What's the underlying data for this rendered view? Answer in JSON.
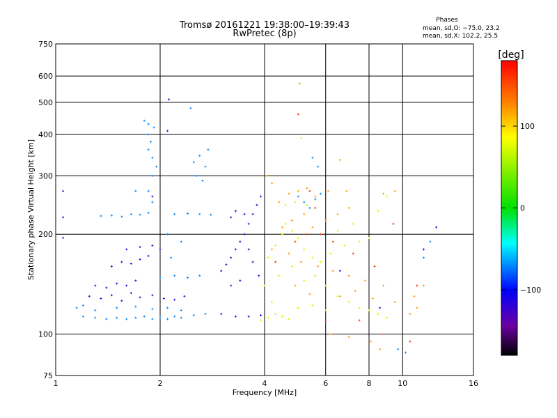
{
  "chart_data": {
    "type": "scatter",
    "title": "Tromsø 20161221 19:38:00–19:39:43",
    "subtitle": "RwPretec (8p)",
    "xlabel": "Frequency [MHz]",
    "ylabel": "Stationary phase Virtual Height [km]",
    "x_scale": "log",
    "y_scale": "log",
    "xlim": [
      1,
      16
    ],
    "ylim": [
      75,
      750
    ],
    "x_ticks": [
      1,
      2,
      4,
      6,
      8,
      10,
      16
    ],
    "y_ticks": [
      75,
      100,
      200,
      300,
      400,
      500,
      600,
      750
    ],
    "grid": true,
    "legend": {
      "title": "Phases",
      "lines": [
        "mean, sd,O: −75.0, 23.2",
        "mean, sd,X: 102.2, 25.5"
      ]
    },
    "colorbar": {
      "label": "[deg]",
      "range": [
        -180,
        180
      ],
      "ticks": [
        100,
        0,
        -100
      ],
      "tick_labels": [
        "100",
        "0",
        "−100"
      ],
      "colors": [
        "#ff0000",
        "#ff8000",
        "#ffff00",
        "#00e000",
        "#00ffff",
        "#0000ff",
        "#6a00a0",
        "#000000"
      ]
    },
    "series": [
      {
        "phase": -120,
        "points": [
          [
            1.25,
            130
          ],
          [
            1.35,
            128
          ],
          [
            1.45,
            131
          ],
          [
            1.55,
            126
          ],
          [
            1.65,
            133
          ],
          [
            1.75,
            129
          ],
          [
            1.9,
            131
          ],
          [
            2.05,
            128
          ],
          [
            2.2,
            127
          ],
          [
            2.35,
            130
          ],
          [
            1.3,
            140
          ],
          [
            1.4,
            138
          ],
          [
            1.5,
            142
          ],
          [
            1.6,
            140
          ],
          [
            1.7,
            145
          ],
          [
            1.45,
            160
          ],
          [
            1.55,
            165
          ],
          [
            1.65,
            163
          ],
          [
            1.75,
            168
          ],
          [
            1.85,
            172
          ],
          [
            1.6,
            180
          ],
          [
            1.75,
            183
          ],
          [
            1.9,
            185
          ],
          [
            2.0,
            180
          ],
          [
            3.0,
            155
          ],
          [
            3.1,
            162
          ],
          [
            3.2,
            170
          ],
          [
            3.3,
            180
          ],
          [
            3.4,
            190
          ],
          [
            3.5,
            200
          ],
          [
            3.6,
            215
          ],
          [
            3.7,
            230
          ],
          [
            3.8,
            245
          ],
          [
            3.9,
            260
          ],
          [
            3.5,
            230
          ],
          [
            3.3,
            235
          ],
          [
            3.2,
            225
          ],
          [
            3.6,
            180
          ],
          [
            3.7,
            165
          ],
          [
            3.85,
            150
          ],
          [
            3.0,
            115
          ],
          [
            3.3,
            113
          ],
          [
            3.6,
            113
          ],
          [
            3.9,
            114
          ],
          [
            3.2,
            140
          ],
          [
            3.4,
            145
          ],
          [
            1.05,
            195
          ],
          [
            1.05,
            225
          ],
          [
            1.05,
            270
          ],
          [
            1.9,
            260
          ],
          [
            2.1,
            410
          ],
          [
            2.12,
            510
          ],
          [
            6.6,
            155
          ],
          [
            8.6,
            120
          ],
          [
            11.5,
            180
          ],
          [
            12.5,
            210
          ]
        ]
      },
      {
        "phase": -70,
        "points": [
          [
            1.15,
            120
          ],
          [
            1.2,
            113
          ],
          [
            1.3,
            112
          ],
          [
            1.4,
            111
          ],
          [
            1.5,
            112
          ],
          [
            1.6,
            111
          ],
          [
            1.7,
            112
          ],
          [
            1.8,
            113
          ],
          [
            1.9,
            111
          ],
          [
            2.0,
            112
          ],
          [
            2.1,
            111
          ],
          [
            2.2,
            113
          ],
          [
            2.3,
            112
          ],
          [
            2.5,
            114
          ],
          [
            2.7,
            115
          ],
          [
            1.2,
            122
          ],
          [
            1.3,
            118
          ],
          [
            1.5,
            120
          ],
          [
            1.7,
            121
          ],
          [
            1.9,
            119
          ],
          [
            2.1,
            120
          ],
          [
            2.3,
            118
          ],
          [
            1.85,
            400
          ],
          [
            1.85,
            430
          ],
          [
            1.85,
            360
          ],
          [
            1.9,
            340
          ],
          [
            1.8,
            440
          ],
          [
            1.9,
            300
          ],
          [
            1.88,
            380
          ],
          [
            1.92,
            420
          ],
          [
            1.95,
            320
          ],
          [
            1.85,
            270
          ],
          [
            1.9,
            250
          ],
          [
            1.45,
            228
          ],
          [
            1.55,
            226
          ],
          [
            1.65,
            230
          ],
          [
            1.75,
            229
          ],
          [
            1.85,
            232
          ],
          [
            1.35,
            227
          ],
          [
            2.2,
            230
          ],
          [
            2.4,
            231
          ],
          [
            2.6,
            230
          ],
          [
            2.8,
            229
          ],
          [
            2.2,
            150
          ],
          [
            2.4,
            148
          ],
          [
            2.6,
            150
          ],
          [
            2.0,
            148
          ],
          [
            2.3,
            190
          ],
          [
            2.5,
            330
          ],
          [
            2.55,
            300
          ],
          [
            2.6,
            345
          ],
          [
            2.65,
            290
          ],
          [
            2.7,
            320
          ],
          [
            2.75,
            360
          ],
          [
            2.45,
            480
          ],
          [
            1.7,
            270
          ],
          [
            2.1,
            200
          ],
          [
            2.15,
            170
          ],
          [
            5.0,
            260
          ],
          [
            5.2,
            250
          ],
          [
            5.4,
            240
          ],
          [
            5.6,
            255
          ],
          [
            5.8,
            265
          ],
          [
            5.5,
            340
          ],
          [
            5.7,
            320
          ],
          [
            12.0,
            190
          ],
          [
            11.5,
            170
          ],
          [
            9.7,
            90
          ],
          [
            10.2,
            88
          ]
        ]
      },
      {
        "phase": 70,
        "points": [
          [
            3.9,
            110
          ],
          [
            4.1,
            112
          ],
          [
            4.3,
            115
          ],
          [
            4.5,
            113
          ],
          [
            4.7,
            111
          ],
          [
            4.2,
            125
          ],
          [
            4.0,
            140
          ],
          [
            4.1,
            170
          ],
          [
            4.3,
            185
          ],
          [
            4.5,
            200
          ],
          [
            4.6,
            215
          ],
          [
            4.8,
            205
          ],
          [
            5.0,
            195
          ],
          [
            5.2,
            180
          ],
          [
            5.5,
            170
          ],
          [
            5.8,
            165
          ],
          [
            6.2,
            175
          ],
          [
            6.8,
            185
          ],
          [
            7.5,
            190
          ],
          [
            8.0,
            195
          ],
          [
            4.4,
            150
          ],
          [
            4.8,
            160
          ],
          [
            5.2,
            145
          ],
          [
            5.6,
            150
          ],
          [
            6.0,
            140
          ],
          [
            6.5,
            130
          ],
          [
            7.0,
            125
          ],
          [
            7.5,
            120
          ],
          [
            8.0,
            118
          ],
          [
            8.5,
            115
          ],
          [
            9.0,
            112
          ],
          [
            5.0,
            120
          ],
          [
            5.5,
            122
          ],
          [
            6.0,
            118
          ],
          [
            4.6,
            245
          ],
          [
            4.9,
            250
          ],
          [
            5.3,
            245
          ],
          [
            6.5,
            205
          ],
          [
            7.2,
            215
          ],
          [
            8.5,
            235
          ],
          [
            9.0,
            260
          ],
          [
            5.1,
            390
          ]
        ]
      },
      {
        "phase": 120,
        "points": [
          [
            4.4,
            250
          ],
          [
            4.7,
            265
          ],
          [
            5.0,
            270
          ],
          [
            5.3,
            275
          ],
          [
            5.6,
            260
          ],
          [
            5.2,
            230
          ],
          [
            4.8,
            220
          ],
          [
            4.5,
            210
          ],
          [
            5.5,
            210
          ],
          [
            6.0,
            220
          ],
          [
            6.5,
            230
          ],
          [
            7.0,
            240
          ],
          [
            4.2,
            180
          ],
          [
            4.7,
            175
          ],
          [
            5.1,
            165
          ],
          [
            5.7,
            160
          ],
          [
            6.3,
            155
          ],
          [
            7.0,
            150
          ],
          [
            7.8,
            145
          ],
          [
            8.8,
            140
          ],
          [
            6.6,
            130
          ],
          [
            7.3,
            135
          ],
          [
            8.2,
            128
          ],
          [
            9.5,
            125
          ],
          [
            10.8,
            130
          ],
          [
            11.5,
            140
          ],
          [
            4.9,
            140
          ],
          [
            5.4,
            132
          ],
          [
            6.2,
            100
          ],
          [
            7.0,
            98
          ],
          [
            8.1,
            95
          ],
          [
            8.6,
            90
          ],
          [
            10.5,
            115
          ],
          [
            11.0,
            120
          ],
          [
            8.8,
            265
          ],
          [
            9.5,
            270
          ],
          [
            6.1,
            270
          ],
          [
            6.9,
            270
          ],
          [
            4.05,
            300
          ],
          [
            4.2,
            285
          ],
          [
            6.6,
            335
          ],
          [
            5.05,
            570
          ]
        ]
      },
      {
        "phase": 160,
        "points": [
          [
            4.3,
            165
          ],
          [
            4.9,
            190
          ],
          [
            5.3,
            200
          ],
          [
            5.8,
            200
          ],
          [
            6.3,
            190
          ],
          [
            7.2,
            175
          ],
          [
            8.3,
            160
          ],
          [
            5.4,
            270
          ],
          [
            5.6,
            240
          ],
          [
            6.0,
            110
          ],
          [
            7.5,
            110
          ],
          [
            8.7,
            100
          ],
          [
            11.0,
            140
          ],
          [
            9.4,
            215
          ],
          [
            10.5,
            95
          ],
          [
            5.0,
            460
          ]
        ]
      }
    ]
  }
}
